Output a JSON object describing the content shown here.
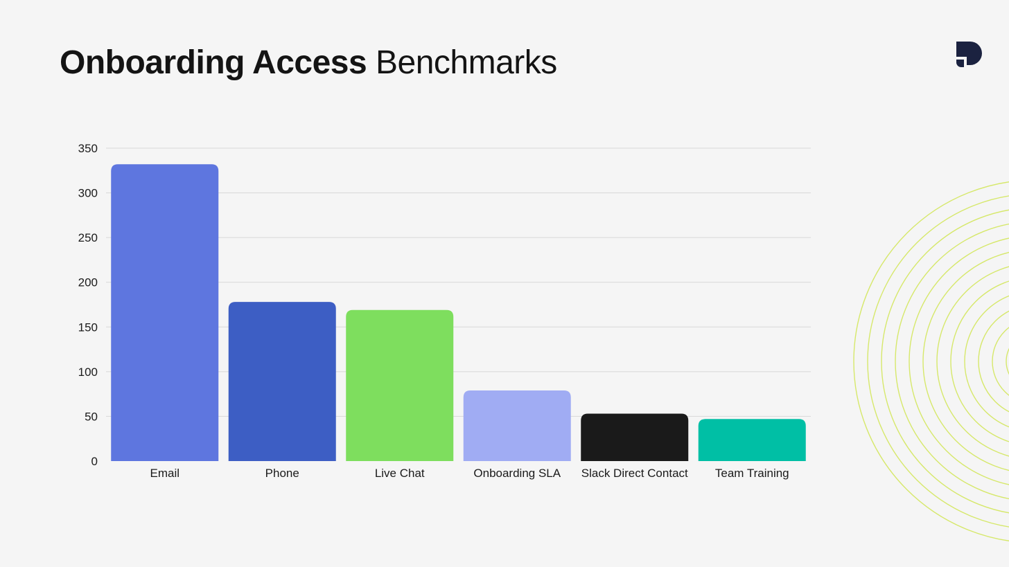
{
  "title": {
    "bold": "Onboarding Access",
    "light": "Benchmarks"
  },
  "logo": {
    "icon": "brand-logo-icon",
    "color": "#1b2240"
  },
  "decoration": {
    "icon": "concentric-rings",
    "color": "#d6e86a"
  },
  "chart_data": {
    "type": "bar",
    "categories": [
      "Email",
      "Phone",
      "Live Chat",
      "Onboarding SLA",
      "Slack Direct Contact",
      "Team Training"
    ],
    "values": [
      332,
      178,
      169,
      79,
      53,
      47
    ],
    "colors": [
      "#5e76df",
      "#3d5ec4",
      "#7ede5e",
      "#a0acf3",
      "#1a1a1a",
      "#00bfa5"
    ],
    "title": "",
    "xlabel": "",
    "ylabel": "",
    "ylim": [
      0,
      350
    ],
    "yticks": [
      0,
      50,
      100,
      150,
      200,
      250,
      300,
      350
    ],
    "grid": true,
    "legend": "none"
  }
}
